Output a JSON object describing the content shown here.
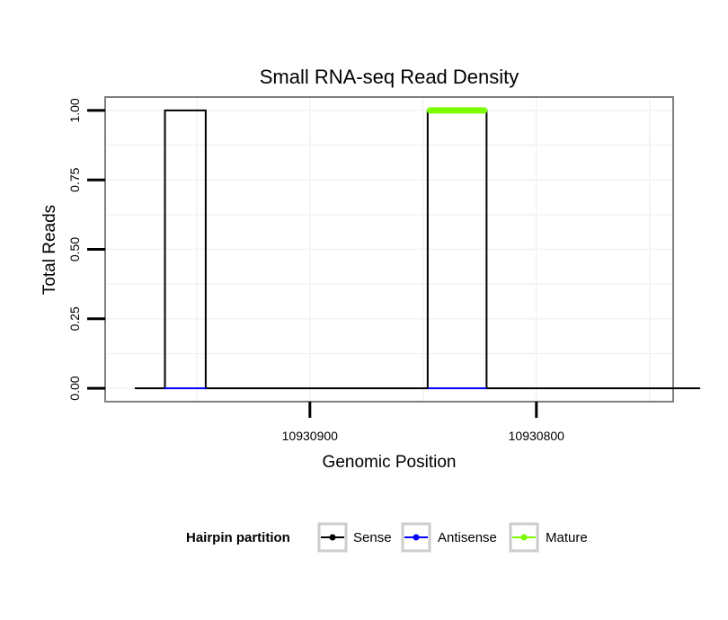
{
  "chart_data": {
    "type": "line",
    "title": "Small RNA-seq Read Density",
    "xlabel": "Genomic Position",
    "ylabel": "Total Reads",
    "x_reversed": true,
    "xlim": [
      10930990,
      10930740
    ],
    "ylim": [
      -0.045,
      1.045
    ],
    "x_ticks": [
      10930900,
      10930800
    ],
    "x_tick_labels": [
      "10930900",
      "10930800"
    ],
    "y_ticks": [
      0,
      0.25,
      0.5,
      0.75,
      1
    ],
    "y_tick_labels": [
      "0.00",
      "0.25",
      "0.50",
      "0.75",
      "1.00"
    ],
    "grid": true,
    "legend": {
      "title": "Hairpin partition",
      "position": "bottom",
      "entries": [
        "Sense",
        "Antisense",
        "Mature"
      ]
    },
    "series": [
      {
        "name": "Sense",
        "color": "#000000",
        "x": [
          10930977,
          10930964,
          10930964,
          10930946,
          10930946,
          10930848,
          10930848,
          10930822,
          10930822,
          10930728
        ],
        "y": [
          0,
          0,
          1,
          1,
          0,
          0,
          1,
          1,
          0,
          0
        ]
      },
      {
        "name": "Antisense",
        "color": "#0000ff",
        "x": [
          10930964,
          10930946
        ],
        "y": [
          0,
          0
        ],
        "x2": [
          10930848,
          10930822
        ],
        "y2": [
          0,
          0
        ]
      },
      {
        "name": "Mature",
        "color": "#7cfc00",
        "x": [
          10930847,
          10930823
        ],
        "y": [
          1,
          1
        ]
      }
    ]
  }
}
